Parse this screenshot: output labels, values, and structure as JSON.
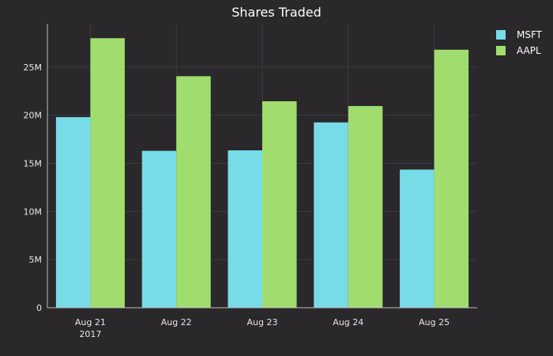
{
  "chart_data": {
    "type": "bar",
    "title": "Shares Traded",
    "xlabel": "",
    "ylabel": "",
    "categories": [
      "Aug 21",
      "Aug 22",
      "Aug 23",
      "Aug 24",
      "Aug 25"
    ],
    "category_sublabels": [
      "2017",
      "",
      "",
      "",
      ""
    ],
    "series": [
      {
        "name": "MSFT",
        "color": "#77dbe8",
        "values": [
          19800000,
          16300000,
          16350000,
          19250000,
          14350000
        ]
      },
      {
        "name": "AAPL",
        "color": "#a0dd6e",
        "values": [
          28000000,
          24050000,
          21450000,
          20950000,
          26800000
        ]
      }
    ],
    "ylim": [
      0,
      29500000
    ],
    "yticks": [
      0,
      5000000,
      10000000,
      15000000,
      20000000,
      25000000
    ],
    "ytick_labels": [
      "0",
      "5M",
      "10M",
      "15M",
      "20M",
      "25M"
    ],
    "grid": true,
    "legend_position": "top-right",
    "colors": {
      "background": "#2a282b",
      "grid": "#3e3c40",
      "text": "#ffffff"
    }
  }
}
